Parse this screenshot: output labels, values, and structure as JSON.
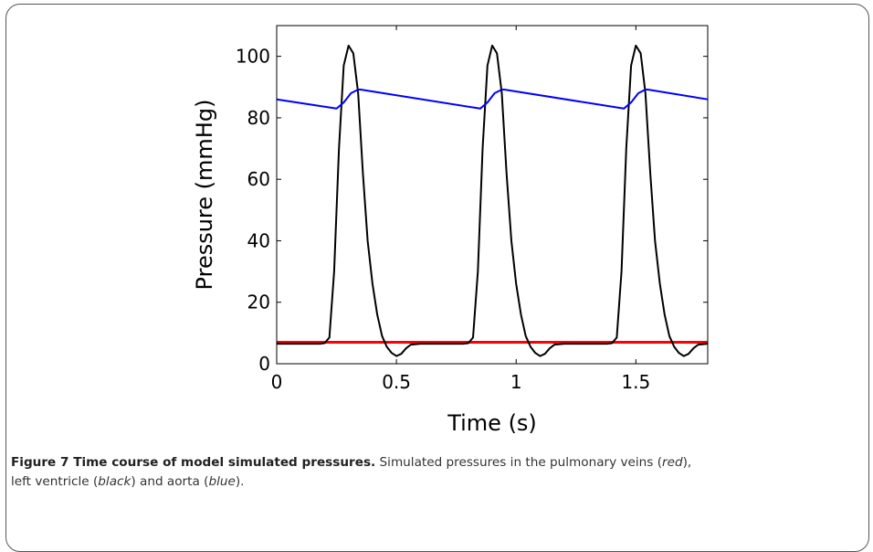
{
  "chart_data": {
    "type": "line",
    "xlabel": "Time (s)",
    "ylabel": "Pressure (mmHg)",
    "xlim": [
      0,
      1.8
    ],
    "ylim": [
      0,
      110
    ],
    "x_ticks": [
      0,
      0.5,
      1,
      1.5
    ],
    "x_tick_labels": [
      "0",
      "0.5",
      "1",
      "1.5"
    ],
    "y_ticks": [
      0,
      20,
      40,
      60,
      80,
      100
    ],
    "y_tick_labels": [
      "0",
      "20",
      "40",
      "60",
      "80",
      "100"
    ],
    "grid": false,
    "legend": "none",
    "series": [
      {
        "color": "#ff0000",
        "x": [
          0,
          1.8
        ],
        "y": [
          7,
          7
        ]
      },
      {
        "color": "#000000",
        "x": [
          0,
          0.18,
          0.2,
          0.22,
          0.24,
          0.26,
          0.28,
          0.3,
          0.32,
          0.34,
          0.36,
          0.38,
          0.4,
          0.42,
          0.44,
          0.46,
          0.48,
          0.5,
          0.52,
          0.54,
          0.56,
          0.6,
          0.65,
          0.7,
          0.75,
          0.78,
          0.8,
          0.82,
          0.84,
          0.86,
          0.88,
          0.9,
          0.92,
          0.94,
          0.96,
          0.98,
          1.0,
          1.02,
          1.04,
          1.06,
          1.08,
          1.1,
          1.12,
          1.14,
          1.16,
          1.2,
          1.25,
          1.3,
          1.35,
          1.38,
          1.4,
          1.42,
          1.44,
          1.46,
          1.48,
          1.5,
          1.52,
          1.54,
          1.56,
          1.58,
          1.6,
          1.62,
          1.64,
          1.66,
          1.68,
          1.7,
          1.72,
          1.74,
          1.76,
          1.8
        ],
        "y": [
          6.5,
          6.5,
          6.7,
          8.5,
          30,
          70,
          97,
          103.5,
          101,
          88,
          62,
          40,
          26,
          16,
          9,
          5.5,
          3.5,
          2.5,
          3.2,
          5,
          6.2,
          6.5,
          6.5,
          6.5,
          6.5,
          6.5,
          6.7,
          8.5,
          30,
          70,
          97,
          103.5,
          101,
          88,
          62,
          40,
          26,
          16,
          9,
          5.5,
          3.5,
          2.5,
          3.2,
          5,
          6.2,
          6.5,
          6.5,
          6.5,
          6.5,
          6.5,
          6.7,
          8.5,
          30,
          70,
          97,
          103.5,
          101,
          88,
          62,
          40,
          26,
          16,
          9,
          5.5,
          3.5,
          2.5,
          3.2,
          5,
          6.2,
          6.5
        ]
      },
      {
        "color": "#0000ff",
        "x": [
          0,
          0.25,
          0.28,
          0.31,
          0.34,
          0.35,
          0.85,
          0.88,
          0.91,
          0.94,
          0.95,
          1.45,
          1.48,
          1.51,
          1.54,
          1.55,
          1.8
        ],
        "y": [
          86,
          83,
          85,
          88,
          89.2,
          89.2,
          83,
          85,
          88,
          89.2,
          89.2,
          83,
          85,
          88,
          89.2,
          89.2,
          86
        ]
      }
    ]
  },
  "caption": {
    "title": "Figure 7 Time course of model simulated pressures.",
    "text_1": " Simulated pressures in the pulmonary veins (",
    "red": "red",
    "text_2": "),",
    "text_3": "left ventricle (",
    "black": "black",
    "text_4": ") and aorta (",
    "blue": "blue",
    "text_5": ")."
  }
}
